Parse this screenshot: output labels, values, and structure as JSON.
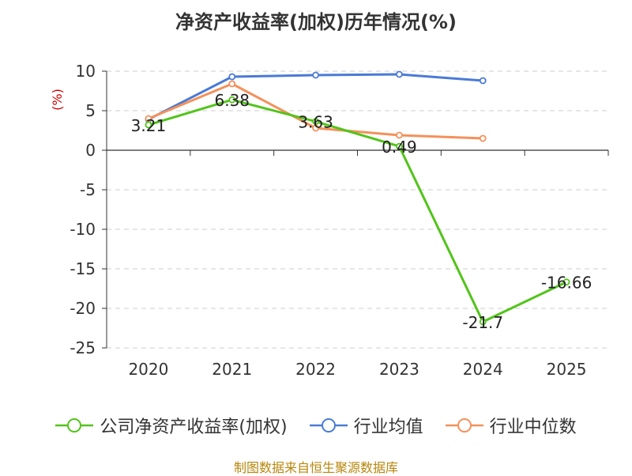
{
  "chart_data": {
    "type": "line",
    "title": "净资产收益率(加权)历年情况(%)",
    "ylabel": "(%)",
    "xlabel": "",
    "categories": [
      "2020",
      "2021",
      "2022",
      "2023",
      "2024",
      "2025"
    ],
    "y_ticks": [
      "10",
      "5",
      "0",
      "-5",
      "-10",
      "-15",
      "-20",
      "-25"
    ],
    "ylim": [
      -25,
      10
    ],
    "grid": true,
    "legend_position": "bottom",
    "series": [
      {
        "name": "公司净资产收益率(加权)",
        "color": "#52c41a",
        "values": [
          3.21,
          6.38,
          3.63,
          0.49,
          -21.7,
          -16.66
        ],
        "labels": [
          "3.21",
          "6.38",
          "3.63",
          "0.49",
          "-21.7",
          "-16.66"
        ]
      },
      {
        "name": "行业均值",
        "color": "#4a7bd6",
        "values": [
          3.9,
          9.3,
          9.5,
          9.6,
          8.8,
          null
        ]
      },
      {
        "name": "行业中位数",
        "color": "#f4915a",
        "values": [
          4.0,
          8.4,
          2.8,
          1.9,
          1.5,
          null
        ]
      }
    ]
  },
  "footer": {
    "source": "制图数据来自恒生聚源数据库"
  }
}
